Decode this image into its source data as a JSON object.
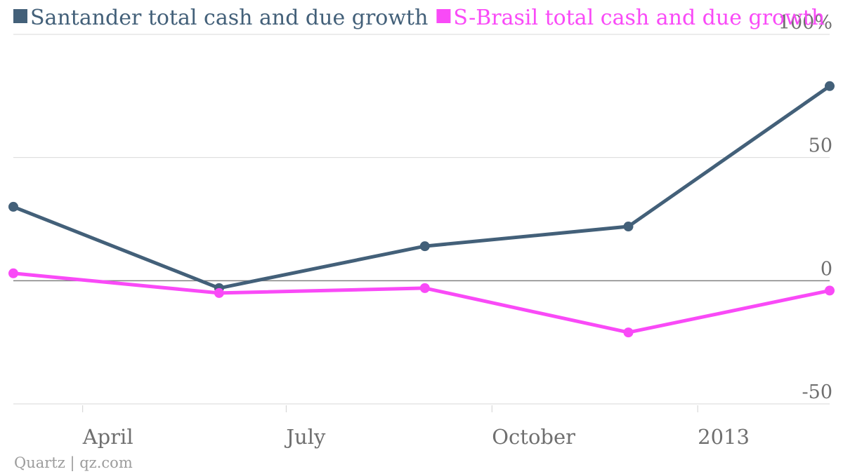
{
  "chart_data": {
    "type": "line",
    "x": [
      "2012-03-01",
      "2012-06-01",
      "2012-09-01",
      "2012-12-01",
      "2013-03-01"
    ],
    "series": [
      {
        "name": "Santander total cash and due growth",
        "color": "#436079",
        "values": [
          30,
          -3,
          14,
          22,
          79
        ]
      },
      {
        "name": "S-Brasil total cash and due growth",
        "color": "#f94af7",
        "values": [
          3,
          -5,
          -3,
          -21,
          -4
        ]
      }
    ],
    "ylim": [
      -50,
      100
    ],
    "yticks": [
      {
        "value": 100,
        "label": "100%"
      },
      {
        "value": 50,
        "label": "50"
      },
      {
        "value": 0,
        "label": "0"
      },
      {
        "value": -50,
        "label": "-50"
      }
    ],
    "xticks": [
      {
        "date": "2012-04-01",
        "label": "April"
      },
      {
        "date": "2012-07-01",
        "label": "July"
      },
      {
        "date": "2012-10-01",
        "label": "October"
      },
      {
        "date": "2013-01-01",
        "label": "2013"
      }
    ],
    "xlim": [
      "2012-03-01",
      "2013-03-01"
    ],
    "grid": true,
    "legend_position": "top-left",
    "title": "",
    "xlabel": "",
    "ylabel": ""
  },
  "footer": {
    "credit": "Quartz | qz.com"
  }
}
